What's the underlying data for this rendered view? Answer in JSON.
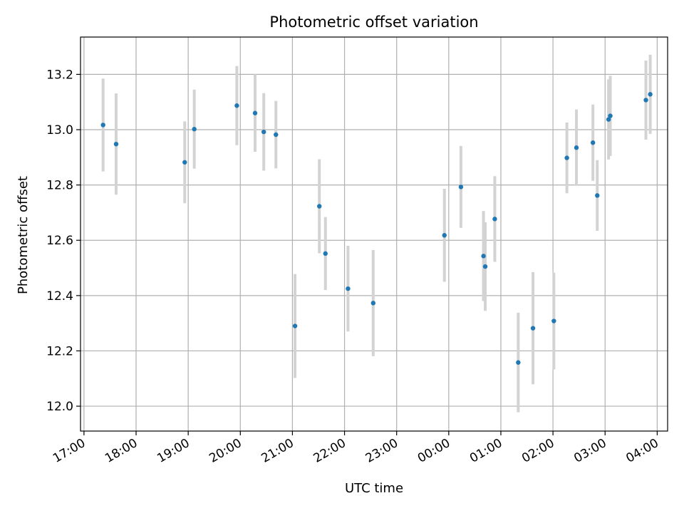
{
  "chart_data": {
    "type": "scatter",
    "title": "Photometric offset variation",
    "xlabel": "UTC time",
    "ylabel": "Photometric offset",
    "grid": true,
    "legend": "none",
    "x_reference_date": "",
    "xlim": [
      "16:56",
      "04:12"
    ],
    "ylim": [
      11.91,
      13.335
    ],
    "x_ticks": [
      "17:00",
      "18:00",
      "19:00",
      "20:00",
      "21:00",
      "22:00",
      "23:00",
      "00:00",
      "01:00",
      "02:00",
      "03:00",
      "04:00"
    ],
    "y_ticks": [
      "12.0",
      "12.2",
      "12.4",
      "12.6",
      "12.8",
      "13.0",
      "13.2"
    ],
    "series": [
      {
        "name": "",
        "color": "#1f77b4",
        "errorbar_color": "#d3d3d3",
        "points": [
          {
            "time": "17:22",
            "y": 13.017,
            "yerr": 0.168
          },
          {
            "time": "17:37",
            "y": 12.948,
            "yerr": 0.183
          },
          {
            "time": "18:56",
            "y": 12.882,
            "yerr": 0.148
          },
          {
            "time": "19:07",
            "y": 13.002,
            "yerr": 0.143
          },
          {
            "time": "19:56",
            "y": 13.087,
            "yerr": 0.143
          },
          {
            "time": "20:17",
            "y": 13.06,
            "yerr": 0.14
          },
          {
            "time": "20:27",
            "y": 12.992,
            "yerr": 0.14
          },
          {
            "time": "20:41",
            "y": 12.982,
            "yerr": 0.122
          },
          {
            "time": "21:03",
            "y": 12.29,
            "yerr": 0.188
          },
          {
            "time": "21:31",
            "y": 12.723,
            "yerr": 0.17
          },
          {
            "time": "21:38",
            "y": 12.552,
            "yerr": 0.132
          },
          {
            "time": "22:04",
            "y": 12.425,
            "yerr": 0.155
          },
          {
            "time": "22:33",
            "y": 12.373,
            "yerr": 0.192
          },
          {
            "time": "23:55",
            "y": 12.618,
            "yerr": 0.168
          },
          {
            "time": "00:14",
            "y": 12.793,
            "yerr": 0.148
          },
          {
            "time": "00:40",
            "y": 12.543,
            "yerr": 0.163
          },
          {
            "time": "00:42",
            "y": 12.505,
            "yerr": 0.16
          },
          {
            "time": "00:53",
            "y": 12.677,
            "yerr": 0.155
          },
          {
            "time": "01:20",
            "y": 12.158,
            "yerr": 0.18
          },
          {
            "time": "01:37",
            "y": 12.282,
            "yerr": 0.203
          },
          {
            "time": "02:01",
            "y": 12.308,
            "yerr": 0.175
          },
          {
            "time": "02:16",
            "y": 12.898,
            "yerr": 0.128
          },
          {
            "time": "02:27",
            "y": 12.935,
            "yerr": 0.138
          },
          {
            "time": "02:46",
            "y": 12.953,
            "yerr": 0.138
          },
          {
            "time": "02:51",
            "y": 12.762,
            "yerr": 0.128
          },
          {
            "time": "03:04",
            "y": 13.037,
            "yerr": 0.145
          },
          {
            "time": "03:06",
            "y": 13.05,
            "yerr": 0.145
          },
          {
            "time": "03:47",
            "y": 13.107,
            "yerr": 0.143
          },
          {
            "time": "03:52",
            "y": 13.128,
            "yerr": 0.143
          }
        ]
      }
    ]
  }
}
